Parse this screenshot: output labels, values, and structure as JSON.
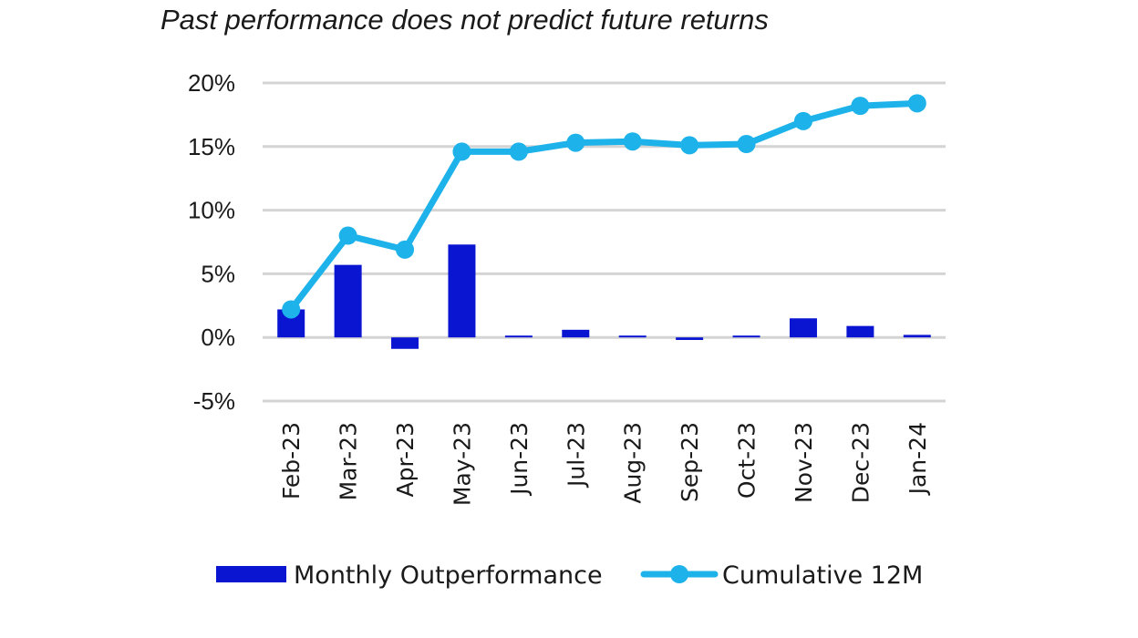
{
  "chart_data": {
    "type": "bar+line",
    "title": "Past performance does not predict future returns",
    "categories": [
      "Feb-23",
      "Mar-23",
      "Apr-23",
      "May-23",
      "Jun-23",
      "Jul-23",
      "Aug-23",
      "Sep-23",
      "Oct-23",
      "Nov-23",
      "Dec-23",
      "Jan-24"
    ],
    "series": [
      {
        "name": "Monthly Outperformance",
        "kind": "bar",
        "color": "#0A15D2",
        "values": [
          2.2,
          5.7,
          -0.9,
          7.3,
          0.0,
          0.6,
          0.1,
          -0.2,
          0.1,
          1.5,
          0.9,
          0.2
        ]
      },
      {
        "name": "Cumulative 12M",
        "kind": "line",
        "color": "#1DB2EA",
        "values": [
          2.2,
          8.0,
          6.9,
          14.6,
          14.6,
          15.3,
          15.4,
          15.1,
          15.2,
          17.0,
          18.2,
          18.4
        ]
      }
    ],
    "yticks": [
      "20%",
      "15%",
      "10%",
      "5%",
      "0%",
      "-5%"
    ],
    "ylim": [
      -5,
      20
    ],
    "ytick_step": 5,
    "xlabel": "",
    "ylabel": "",
    "grid": "horizontal",
    "legend_position": "bottom-center"
  }
}
